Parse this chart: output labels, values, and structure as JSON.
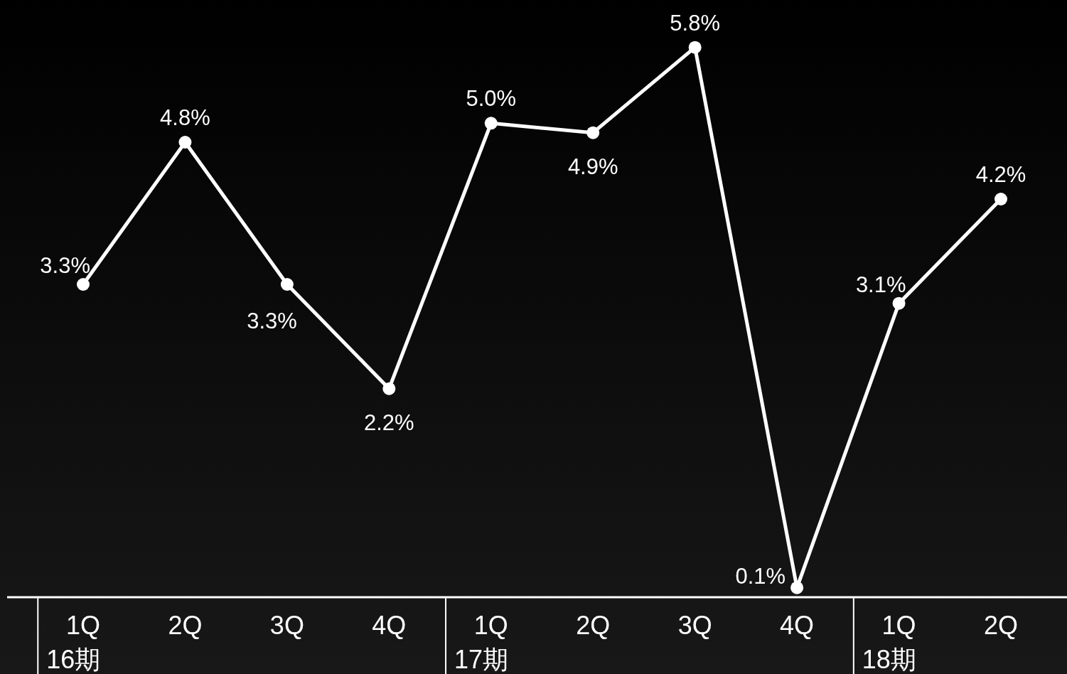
{
  "chart_data": {
    "type": "line",
    "categories": [
      "1Q\n16期",
      "2Q",
      "3Q",
      "4Q",
      "1Q\n17期",
      "2Q",
      "3Q",
      "4Q",
      "1Q\n18期",
      "2Q"
    ],
    "series": [
      {
        "color": "#ffffff",
        "values": [
          3.3,
          4.8,
          3.3,
          2.2,
          5.0,
          4.9,
          5.8,
          0.1,
          3.1,
          4.2
        ],
        "value_labels": [
          "3.3%",
          "4.8%",
          "3.3%",
          "2.2%",
          "5.0%",
          "4.9%",
          "5.8%",
          "0.1%",
          "3.1%",
          "4.2%"
        ]
      }
    ],
    "ylim": [
      0,
      6.3
    ],
    "tick_labels": "x",
    "marker": "circle",
    "line_style": "solid"
  }
}
